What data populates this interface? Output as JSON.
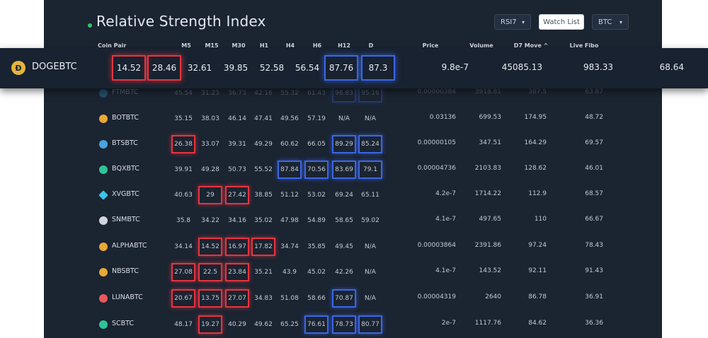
{
  "header": {
    "title": "Relative Strength Index",
    "indicator_select": "RSI7",
    "watchlist_button": "Watch List",
    "base_select": "BTC"
  },
  "columns": {
    "coin_pair": "Coin Pair",
    "m5": "M5",
    "m15": "M15",
    "m30": "M30",
    "h1": "H1",
    "h4": "H4",
    "h6": "H6",
    "h12": "H12",
    "d": "D",
    "price": "Price",
    "volume": "Volume",
    "d7move": "D7 Move ^",
    "livefibo": "Live Fibo"
  },
  "highlighted_row": {
    "pair": "DOGEBTC",
    "m5": "14.52",
    "m15": "28.46",
    "m30": "32.61",
    "h1": "39.85",
    "h4": "52.58",
    "h6": "56.54",
    "h12": "87.76",
    "d": "87.3",
    "price": "9.8e-7",
    "volume": "45085.13",
    "d7move": "983.33",
    "livefibo": "68.64"
  },
  "rows": [
    {
      "pair": "FTMBTC",
      "m5": "45.54",
      "m15": "31.23",
      "m30": "36.73",
      "h1": "42.16",
      "h4": "55.32",
      "h6": "61.43",
      "h12": "96.83",
      "d": "95.16",
      "price": "0.00000384",
      "volume": "3918.81",
      "d7move": "387.5",
      "livefibo": "63.87"
    },
    {
      "pair": "BOTBTC",
      "m5": "35.15",
      "m15": "38.03",
      "m30": "46.14",
      "h1": "47.41",
      "h4": "49.56",
      "h6": "57.19",
      "h12": "N/A",
      "d": "N/A",
      "price": "0.03136",
      "volume": "699.53",
      "d7move": "174.95",
      "livefibo": "48.72"
    },
    {
      "pair": "BTSBTC",
      "m5": "26.38",
      "m15": "33.07",
      "m30": "39.31",
      "h1": "49.29",
      "h4": "60.62",
      "h6": "66.05",
      "h12": "89.29",
      "d": "85.24",
      "price": "0.00000105",
      "volume": "347.51",
      "d7move": "164.29",
      "livefibo": "69.57"
    },
    {
      "pair": "BQXBTC",
      "m5": "39.91",
      "m15": "49.28",
      "m30": "50.73",
      "h1": "55.52",
      "h4": "87.84",
      "h6": "70.56",
      "h12": "83.69",
      "d": "79.1",
      "price": "0.00004736",
      "volume": "2103.83",
      "d7move": "128.62",
      "livefibo": "46.01"
    },
    {
      "pair": "XVGBTC",
      "m5": "40.63",
      "m15": "29",
      "m30": "27.42",
      "h1": "38.85",
      "h4": "51.12",
      "h6": "53.02",
      "h12": "69.24",
      "d": "65.11",
      "price": "4.2e-7",
      "volume": "1714.22",
      "d7move": "112.9",
      "livefibo": "68.57"
    },
    {
      "pair": "SNMBTC",
      "m5": "35.8",
      "m15": "34.22",
      "m30": "34.16",
      "h1": "35.02",
      "h4": "47.98",
      "h6": "54.89",
      "h12": "58.65",
      "d": "59.02",
      "price": "4.1e-7",
      "volume": "497.65",
      "d7move": "110",
      "livefibo": "66.67"
    },
    {
      "pair": "ALPHABTC",
      "m5": "34.14",
      "m15": "14.52",
      "m30": "16.97",
      "h1": "17.82",
      "h4": "34.74",
      "h6": "35.85",
      "h12": "49.45",
      "d": "N/A",
      "price": "0.00003864",
      "volume": "2391.86",
      "d7move": "97.24",
      "livefibo": "78.43"
    },
    {
      "pair": "NBSBTC",
      "m5": "27.08",
      "m15": "22.5",
      "m30": "23.84",
      "h1": "35.21",
      "h4": "43.9",
      "h6": "45.02",
      "h12": "42.26",
      "d": "N/A",
      "price": "4.1e-7",
      "volume": "143.52",
      "d7move": "92.11",
      "livefibo": "91.43"
    },
    {
      "pair": "LUNABTC",
      "m5": "20.67",
      "m15": "13.75",
      "m30": "27.07",
      "h1": "34.83",
      "h4": "51.08",
      "h6": "58.66",
      "h12": "70.87",
      "d": "N/A",
      "price": "0.00004319",
      "volume": "2640",
      "d7move": "86.78",
      "livefibo": "36.91"
    },
    {
      "pair": "SCBTC",
      "m5": "48.17",
      "m15": "19.27",
      "m30": "40.29",
      "h1": "49.62",
      "h4": "65.25",
      "h6": "76.61",
      "h12": "78.73",
      "d": "80.77",
      "price": "2e-7",
      "volume": "1117.76",
      "d7move": "84.62",
      "livefibo": "36.36"
    }
  ]
}
